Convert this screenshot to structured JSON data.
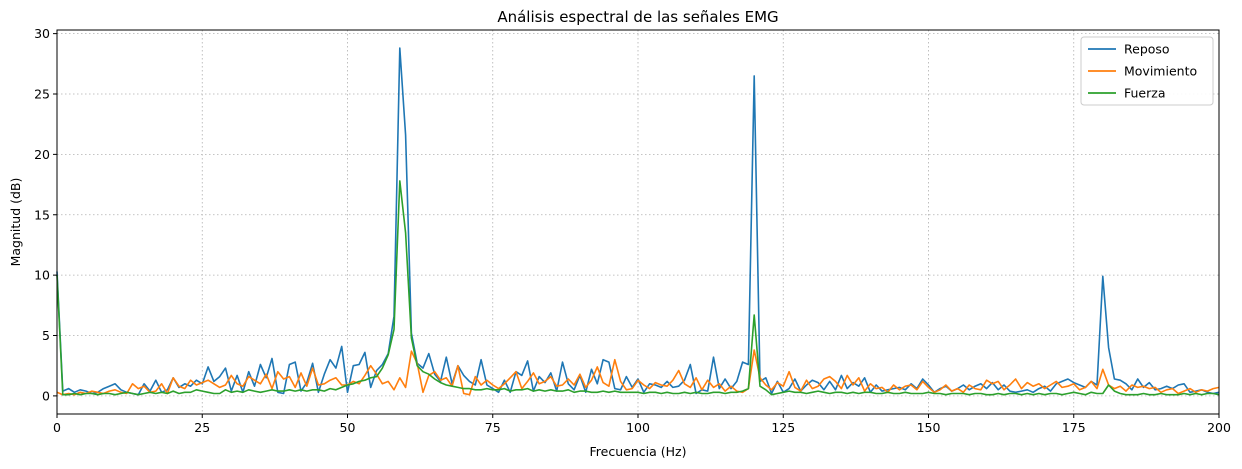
{
  "chart_data": {
    "type": "line",
    "title": "Análisis espectral de las señales EMG",
    "xlabel": "Frecuencia (Hz)",
    "ylabel": "Magnitud (dB)",
    "xlim": [
      0,
      200
    ],
    "ylim": [
      -1.5,
      30.3
    ],
    "xticks": [
      0,
      25,
      50,
      75,
      100,
      125,
      150,
      175,
      200
    ],
    "yticks": [
      0,
      5,
      10,
      15,
      20,
      25,
      30
    ],
    "grid": true,
    "legend_position": "top-right",
    "series": [
      {
        "name": "Reposo",
        "color": "#1f77b4",
        "x": [
          0,
          1,
          2,
          3,
          4,
          5,
          6,
          7,
          8,
          9,
          10,
          11,
          12,
          13,
          14,
          15,
          16,
          17,
          18,
          19,
          20,
          21,
          22,
          23,
          24,
          25,
          26,
          27,
          28,
          29,
          30,
          31,
          32,
          33,
          34,
          35,
          36,
          37,
          38,
          39,
          40,
          41,
          42,
          43,
          44,
          45,
          46,
          47,
          48,
          49,
          50,
          51,
          52,
          53,
          54,
          55,
          56,
          57,
          58,
          59,
          60,
          61,
          62,
          63,
          64,
          65,
          66,
          67,
          68,
          69,
          70,
          71,
          72,
          73,
          74,
          75,
          76,
          77,
          78,
          79,
          80,
          81,
          82,
          83,
          84,
          85,
          86,
          87,
          88,
          89,
          90,
          91,
          92,
          93,
          94,
          95,
          96,
          97,
          98,
          99,
          100,
          101,
          102,
          103,
          104,
          105,
          106,
          107,
          108,
          109,
          110,
          111,
          112,
          113,
          114,
          115,
          116,
          117,
          118,
          119,
          120,
          121,
          122,
          123,
          124,
          125,
          126,
          127,
          128,
          129,
          130,
          131,
          132,
          133,
          134,
          135,
          136,
          137,
          138,
          139,
          140,
          141,
          142,
          143,
          144,
          145,
          146,
          147,
          148,
          149,
          150,
          151,
          152,
          153,
          154,
          155,
          156,
          157,
          158,
          159,
          160,
          161,
          162,
          163,
          164,
          165,
          166,
          167,
          168,
          169,
          170,
          171,
          172,
          173,
          174,
          175,
          176,
          177,
          178,
          179,
          180,
          181,
          182,
          183,
          184,
          185,
          186,
          187,
          188,
          189,
          190,
          191,
          192,
          193,
          194,
          195,
          196,
          197,
          198,
          199,
          200
        ],
        "values": [
          10.3,
          0.4,
          0.6,
          0.3,
          0.5,
          0.4,
          0.2,
          0.3,
          0.6,
          0.8,
          1.0,
          0.5,
          0.3,
          0.2,
          0.1,
          1.0,
          0.4,
          1.3,
          0.3,
          0.5,
          1.5,
          0.7,
          1.0,
          0.8,
          1.3,
          1.0,
          2.4,
          1.2,
          1.6,
          2.3,
          0.4,
          1.7,
          0.3,
          2.0,
          0.8,
          2.6,
          1.5,
          3.1,
          0.3,
          0.2,
          2.6,
          2.8,
          0.4,
          1.1,
          2.7,
          0.3,
          1.8,
          3.0,
          2.3,
          4.1,
          0.3,
          2.5,
          2.6,
          3.6,
          0.7,
          2.1,
          2.6,
          3.5,
          6.6,
          28.8,
          21.6,
          5.2,
          2.7,
          2.3,
          3.5,
          1.8,
          1.2,
          3.2,
          1.0,
          2.5,
          1.7,
          1.2,
          0.9,
          3.0,
          0.9,
          0.6,
          0.3,
          1.3,
          0.3,
          2.0,
          1.7,
          2.9,
          0.4,
          1.6,
          1.1,
          1.9,
          0.4,
          2.8,
          1.0,
          0.5,
          1.7,
          0.3,
          2.2,
          1.0,
          3.0,
          2.8,
          0.6,
          0.5,
          1.6,
          0.7,
          1.4,
          0.3,
          1.0,
          0.9,
          0.7,
          1.2,
          0.7,
          0.8,
          1.3,
          2.6,
          0.2,
          0.5,
          0.4,
          3.2,
          0.6,
          1.4,
          0.6,
          1.2,
          2.8,
          2.6,
          26.5,
          1.2,
          1.5,
          0.2,
          1.2,
          0.3,
          0.6,
          1.4,
          0.4,
          0.9,
          1.3,
          1.1,
          0.5,
          1.2,
          0.5,
          1.7,
          0.6,
          1.1,
          0.8,
          1.5,
          0.3,
          0.9,
          0.4,
          0.5,
          0.6,
          0.7,
          0.5,
          1.0,
          0.6,
          1.4,
          0.9,
          0.3,
          0.6,
          0.8,
          0.4,
          0.6,
          0.9,
          0.5,
          0.8,
          1.0,
          0.6,
          1.1,
          0.5,
          0.9,
          0.4,
          0.3,
          0.4,
          0.5,
          0.3,
          0.6,
          0.8,
          0.4,
          1.0,
          1.2,
          1.4,
          1.1,
          0.9,
          0.7,
          1.2,
          0.9,
          9.9,
          4.0,
          1.4,
          1.3,
          1.0,
          0.5,
          1.4,
          0.7,
          1.1,
          0.5,
          0.6,
          0.8,
          0.6,
          0.9,
          1.0,
          0.3,
          0.4,
          0.5,
          0.3,
          0.2,
          0.3
        ]
      },
      {
        "name": "Movimiento",
        "color": "#ff7f0e",
        "x": [
          0,
          1,
          2,
          3,
          4,
          5,
          6,
          7,
          8,
          9,
          10,
          11,
          12,
          13,
          14,
          15,
          16,
          17,
          18,
          19,
          20,
          21,
          22,
          23,
          24,
          25,
          26,
          27,
          28,
          29,
          30,
          31,
          32,
          33,
          34,
          35,
          36,
          37,
          38,
          39,
          40,
          41,
          42,
          43,
          44,
          45,
          46,
          47,
          48,
          49,
          50,
          51,
          52,
          53,
          54,
          55,
          56,
          57,
          58,
          59,
          60,
          61,
          62,
          63,
          64,
          65,
          66,
          67,
          68,
          69,
          70,
          71,
          72,
          73,
          74,
          75,
          76,
          77,
          78,
          79,
          80,
          81,
          82,
          83,
          84,
          85,
          86,
          87,
          88,
          89,
          90,
          91,
          92,
          93,
          94,
          95,
          96,
          97,
          98,
          99,
          100,
          101,
          102,
          103,
          104,
          105,
          106,
          107,
          108,
          109,
          110,
          111,
          112,
          113,
          114,
          115,
          116,
          117,
          118,
          119,
          120,
          121,
          122,
          123,
          124,
          125,
          126,
          127,
          128,
          129,
          130,
          131,
          132,
          133,
          134,
          135,
          136,
          137,
          138,
          139,
          140,
          141,
          142,
          143,
          144,
          145,
          146,
          147,
          148,
          149,
          150,
          151,
          152,
          153,
          154,
          155,
          156,
          157,
          158,
          159,
          160,
          161,
          162,
          163,
          164,
          165,
          166,
          167,
          168,
          169,
          170,
          171,
          172,
          173,
          174,
          175,
          176,
          177,
          178,
          179,
          180,
          181,
          182,
          183,
          184,
          185,
          186,
          187,
          188,
          189,
          190,
          191,
          192,
          193,
          194,
          195,
          196,
          197,
          198,
          199,
          200
        ],
        "values": [
          0.3,
          0.1,
          0.2,
          0.1,
          0.3,
          0.2,
          0.4,
          0.3,
          0.2,
          0.4,
          0.5,
          0.3,
          0.2,
          1.0,
          0.6,
          0.8,
          0.3,
          0.4,
          1.0,
          0.2,
          1.5,
          0.8,
          0.6,
          1.3,
          0.9,
          1.1,
          1.3,
          1.0,
          0.7,
          0.9,
          1.7,
          1.0,
          0.8,
          1.6,
          1.3,
          1.0,
          1.8,
          0.6,
          2.0,
          1.4,
          1.6,
          0.7,
          1.9,
          0.8,
          2.3,
          0.9,
          1.0,
          1.3,
          1.5,
          0.9,
          0.9,
          1.2,
          1.0,
          1.7,
          2.5,
          1.8,
          1.0,
          1.2,
          0.5,
          1.5,
          0.7,
          3.7,
          2.7,
          0.3,
          1.7,
          2.0,
          1.3,
          1.5,
          0.8,
          2.5,
          0.2,
          0.1,
          1.6,
          0.9,
          1.3,
          0.9,
          0.6,
          1.0,
          1.5,
          2.0,
          0.6,
          1.2,
          1.9,
          1.0,
          1.2,
          1.6,
          0.8,
          0.9,
          1.4,
          0.9,
          1.8,
          0.7,
          1.3,
          2.4,
          1.1,
          0.8,
          3.0,
          1.2,
          0.5,
          0.6,
          1.3,
          0.9,
          0.6,
          1.1,
          0.9,
          0.8,
          1.3,
          2.1,
          1.0,
          0.7,
          1.5,
          0.5,
          1.3,
          0.7,
          1.0,
          0.4,
          0.8,
          0.4,
          0.3,
          0.6,
          3.8,
          1.5,
          0.9,
          0.5,
          1.1,
          0.8,
          2.0,
          0.7,
          0.4,
          1.3,
          0.6,
          0.8,
          1.4,
          1.6,
          1.2,
          0.6,
          1.7,
          0.9,
          1.5,
          0.4,
          1.0,
          0.6,
          0.7,
          0.3,
          0.9,
          0.5,
          0.8,
          0.9,
          0.5,
          1.2,
          0.7,
          0.3,
          0.5,
          0.9,
          0.4,
          0.6,
          0.3,
          0.9,
          0.6,
          0.5,
          1.3,
          1.0,
          1.2,
          0.5,
          0.9,
          1.4,
          0.6,
          1.1,
          0.8,
          1.0,
          0.6,
          0.9,
          1.2,
          0.7,
          0.8,
          1.0,
          0.5,
          0.7,
          1.2,
          0.6,
          2.2,
          0.9,
          0.6,
          0.8,
          0.4,
          0.9,
          0.7,
          0.8,
          0.6,
          0.7,
          0.3,
          0.5,
          0.6,
          0.2,
          0.4,
          0.6,
          0.3,
          0.5,
          0.4,
          0.6,
          0.7
        ]
      },
      {
        "name": "Fuerza",
        "color": "#2ca02c",
        "x": [
          0,
          1,
          2,
          3,
          4,
          5,
          6,
          7,
          8,
          9,
          10,
          11,
          12,
          13,
          14,
          15,
          16,
          17,
          18,
          19,
          20,
          21,
          22,
          23,
          24,
          25,
          26,
          27,
          28,
          29,
          30,
          31,
          32,
          33,
          34,
          35,
          36,
          37,
          38,
          39,
          40,
          41,
          42,
          43,
          44,
          45,
          46,
          47,
          48,
          49,
          50,
          51,
          52,
          53,
          54,
          55,
          56,
          57,
          58,
          59,
          60,
          61,
          62,
          63,
          64,
          65,
          66,
          67,
          68,
          69,
          70,
          71,
          72,
          73,
          74,
          75,
          76,
          77,
          78,
          79,
          80,
          81,
          82,
          83,
          84,
          85,
          86,
          87,
          88,
          89,
          90,
          91,
          92,
          93,
          94,
          95,
          96,
          97,
          98,
          99,
          100,
          101,
          102,
          103,
          104,
          105,
          106,
          107,
          108,
          109,
          110,
          111,
          112,
          113,
          114,
          115,
          116,
          117,
          118,
          119,
          120,
          121,
          122,
          123,
          124,
          125,
          126,
          127,
          128,
          129,
          130,
          131,
          132,
          133,
          134,
          135,
          136,
          137,
          138,
          139,
          140,
          141,
          142,
          143,
          144,
          145,
          146,
          147,
          148,
          149,
          150,
          151,
          152,
          153,
          154,
          155,
          156,
          157,
          158,
          159,
          160,
          161,
          162,
          163,
          164,
          165,
          166,
          167,
          168,
          169,
          170,
          171,
          172,
          173,
          174,
          175,
          176,
          177,
          178,
          179,
          180,
          181,
          182,
          183,
          184,
          185,
          186,
          187,
          188,
          189,
          190,
          191,
          192,
          193,
          194,
          195,
          196,
          197,
          198,
          199,
          200
        ],
        "values": [
          10.0,
          0.1,
          0.1,
          0.2,
          0.1,
          0.2,
          0.2,
          0.1,
          0.2,
          0.2,
          0.1,
          0.2,
          0.3,
          0.2,
          0.1,
          0.2,
          0.3,
          0.2,
          0.3,
          0.2,
          0.4,
          0.2,
          0.3,
          0.3,
          0.5,
          0.4,
          0.3,
          0.2,
          0.2,
          0.5,
          0.3,
          0.4,
          0.3,
          0.5,
          0.4,
          0.3,
          0.4,
          0.5,
          0.4,
          0.4,
          0.5,
          0.4,
          0.5,
          0.4,
          0.5,
          0.5,
          0.4,
          0.6,
          0.5,
          0.7,
          0.9,
          1.0,
          1.2,
          1.3,
          1.5,
          1.6,
          2.3,
          3.4,
          5.5,
          17.8,
          13.5,
          4.8,
          2.5,
          2.0,
          1.8,
          1.4,
          1.1,
          0.9,
          0.8,
          0.7,
          0.6,
          0.6,
          0.5,
          0.5,
          0.6,
          0.5,
          0.5,
          0.6,
          0.4,
          0.5,
          0.5,
          0.6,
          0.4,
          0.5,
          0.4,
          0.5,
          0.4,
          0.4,
          0.5,
          0.3,
          0.4,
          0.4,
          0.3,
          0.3,
          0.4,
          0.3,
          0.4,
          0.3,
          0.3,
          0.3,
          0.3,
          0.2,
          0.3,
          0.3,
          0.2,
          0.3,
          0.2,
          0.2,
          0.3,
          0.2,
          0.3,
          0.2,
          0.2,
          0.3,
          0.3,
          0.2,
          0.3,
          0.3,
          0.4,
          0.6,
          6.7,
          0.8,
          0.5,
          0.1,
          0.2,
          0.3,
          0.4,
          0.3,
          0.3,
          0.2,
          0.3,
          0.4,
          0.3,
          0.2,
          0.3,
          0.3,
          0.2,
          0.3,
          0.2,
          0.3,
          0.3,
          0.2,
          0.2,
          0.3,
          0.2,
          0.2,
          0.3,
          0.2,
          0.2,
          0.2,
          0.3,
          0.2,
          0.2,
          0.1,
          0.2,
          0.2,
          0.2,
          0.1,
          0.2,
          0.2,
          0.1,
          0.1,
          0.2,
          0.1,
          0.2,
          0.2,
          0.1,
          0.2,
          0.1,
          0.2,
          0.1,
          0.2,
          0.2,
          0.1,
          0.2,
          0.3,
          0.2,
          0.1,
          0.3,
          0.2,
          0.2,
          0.9,
          0.4,
          0.2,
          0.1,
          0.1,
          0.1,
          0.2,
          0.1,
          0.1,
          0.2,
          0.1,
          0.1,
          0.1,
          0.2,
          0.1,
          0.2,
          0.1,
          0.2,
          0.2,
          0.1
        ]
      }
    ]
  }
}
